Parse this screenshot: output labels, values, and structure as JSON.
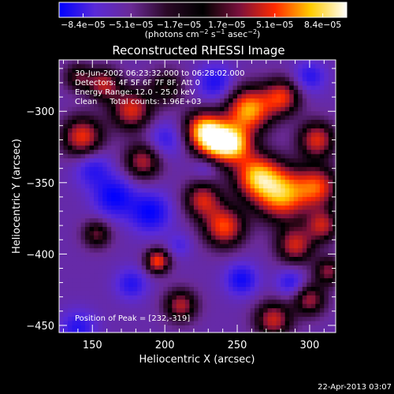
{
  "chart_data": {
    "type": "heatmap",
    "title": "Reconstructed RHESSI Image",
    "colorbar": {
      "ticks": [
        "−8.4e−05",
        "−5.1e−05",
        "−1.7e−05",
        "1.7e−05",
        "5.1e−05",
        "8.4e−05"
      ],
      "range": [
        -8.4e-05,
        8.4e-05
      ],
      "unit_main": "(photons cm",
      "unit_sup1": "−2",
      "unit_mid": " s",
      "unit_sup2": "−1",
      "unit_tail": " asec",
      "unit_sup3": "−2",
      "unit_end": ")",
      "colors": [
        "#0000ff",
        "#5a2ad8",
        "#6a2a96",
        "#2a0826",
        "#000000",
        "#78103c",
        "#ff2a00",
        "#ffcc00",
        "#ffffff"
      ]
    },
    "xlabel": "Heliocentric X (arcsec)",
    "ylabel": "Heliocentric Y (arcsec)",
    "xlim": [
      127,
      318
    ],
    "ylim": [
      -455,
      -264
    ],
    "xticks": [
      150,
      200,
      250,
      300
    ],
    "yticks": [
      -300,
      -350,
      -400,
      -450
    ],
    "annotations": [
      "30-Jun-2002 06:23:32.000 to 06:28:02.000",
      "Detectors: 4F 5F 6F 7F 8F, Att 0",
      "Energy Range: 12.0 - 25.0 keV",
      "Clean     Total counts: 1.96E+03"
    ],
    "peak_label": "Position of Peak = [232,-319]",
    "peak": [
      232,
      -319
    ],
    "blobs": [
      {
        "x": 158,
        "y": -281,
        "v": 0.55,
        "s": 8
      },
      {
        "x": 140,
        "y": -276,
        "v": 0.35,
        "s": 7
      },
      {
        "x": 177,
        "y": -299,
        "v": 0.65,
        "s": 10
      },
      {
        "x": 201,
        "y": -283,
        "v": 0.3,
        "s": 9
      },
      {
        "x": 143,
        "y": -318,
        "v": 0.7,
        "s": 10
      },
      {
        "x": 185,
        "y": -335,
        "v": 0.55,
        "s": 9
      },
      {
        "x": 226,
        "y": -312,
        "v": 0.7,
        "s": 9
      },
      {
        "x": 235,
        "y": -321,
        "v": 0.98,
        "s": 10
      },
      {
        "x": 248,
        "y": -323,
        "v": 0.75,
        "s": 9
      },
      {
        "x": 258,
        "y": -299,
        "v": 0.95,
        "s": 11
      },
      {
        "x": 281,
        "y": -290,
        "v": 0.65,
        "s": 9
      },
      {
        "x": 305,
        "y": -320,
        "v": 0.65,
        "s": 9
      },
      {
        "x": 263,
        "y": -345,
        "v": 0.85,
        "s": 11
      },
      {
        "x": 281,
        "y": -358,
        "v": 0.95,
        "s": 13
      },
      {
        "x": 306,
        "y": -353,
        "v": 0.65,
        "s": 10
      },
      {
        "x": 226,
        "y": -362,
        "v": 0.6,
        "s": 9
      },
      {
        "x": 241,
        "y": -381,
        "v": 0.75,
        "s": 10
      },
      {
        "x": 290,
        "y": -394,
        "v": 0.6,
        "s": 9
      },
      {
        "x": 309,
        "y": -380,
        "v": 0.55,
        "s": 8
      },
      {
        "x": 195,
        "y": -405,
        "v": 0.75,
        "s": 6
      },
      {
        "x": 153,
        "y": -386,
        "v": 0.4,
        "s": 7
      },
      {
        "x": 211,
        "y": -436,
        "v": 0.55,
        "s": 8
      },
      {
        "x": 275,
        "y": -446,
        "v": 0.6,
        "s": 9
      },
      {
        "x": 300,
        "y": -432,
        "v": 0.5,
        "s": 8
      },
      {
        "x": 313,
        "y": -412,
        "v": 0.45,
        "s": 7
      },
      {
        "x": 150,
        "y": -340,
        "v": -0.55,
        "s": 9
      },
      {
        "x": 165,
        "y": -360,
        "v": -0.7,
        "s": 10
      },
      {
        "x": 190,
        "y": -371,
        "v": -0.7,
        "s": 10
      },
      {
        "x": 200,
        "y": -320,
        "v": -0.5,
        "s": 9
      },
      {
        "x": 235,
        "y": -280,
        "v": -0.6,
        "s": 9
      },
      {
        "x": 300,
        "y": -276,
        "v": -0.55,
        "s": 8
      },
      {
        "x": 177,
        "y": -421,
        "v": -0.55,
        "s": 8
      },
      {
        "x": 140,
        "y": -452,
        "v": -0.55,
        "s": 9
      },
      {
        "x": 253,
        "y": -418,
        "v": -0.65,
        "s": 8
      },
      {
        "x": 287,
        "y": -420,
        "v": -0.55,
        "s": 7
      },
      {
        "x": 228,
        "y": -339,
        "v": -0.4,
        "s": 6
      },
      {
        "x": 210,
        "y": -394,
        "v": -0.4,
        "s": 6
      }
    ]
  },
  "footer": {
    "timestamp": "22-Apr-2013 03:07"
  }
}
